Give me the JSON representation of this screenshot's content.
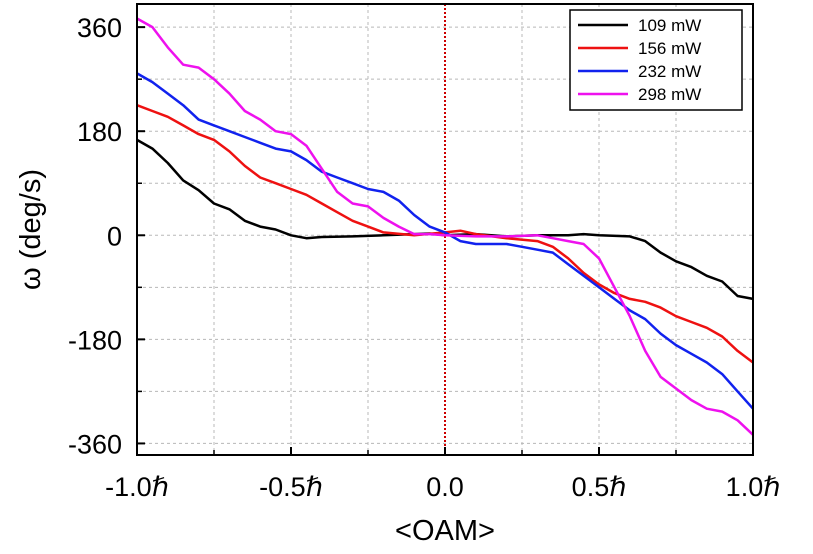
{
  "chart_data": {
    "type": "line",
    "xlabel": "<OAM>",
    "ylabel": "ω (deg/s)",
    "xlim": [
      -1.0,
      1.0
    ],
    "ylim": [
      -380,
      400
    ],
    "x_ticks": [
      {
        "value": -1.0,
        "label": "-1.0ℏ"
      },
      {
        "value": -0.5,
        "label": "-0.5ℏ"
      },
      {
        "value": 0.0,
        "label": "0.0"
      },
      {
        "value": 0.5,
        "label": "0.5ℏ"
      },
      {
        "value": 1.0,
        "label": "1.0ℏ"
      }
    ],
    "y_ticks": [
      {
        "value": 360,
        "label": "360"
      },
      {
        "value": 180,
        "label": "180"
      },
      {
        "value": 0,
        "label": "0"
      },
      {
        "value": -180,
        "label": "-180"
      },
      {
        "value": -360,
        "label": "-360"
      }
    ],
    "grid": true,
    "reference_line": {
      "x": 0.0,
      "color": "#cc0000"
    },
    "legend_position": "top-right",
    "series": [
      {
        "name": "109 mW",
        "color": "#000000",
        "points": [
          [
            -1.0,
            165
          ],
          [
            -0.95,
            150
          ],
          [
            -0.9,
            125
          ],
          [
            -0.85,
            95
          ],
          [
            -0.8,
            78
          ],
          [
            -0.75,
            55
          ],
          [
            -0.7,
            45
          ],
          [
            -0.65,
            25
          ],
          [
            -0.6,
            15
          ],
          [
            -0.55,
            10
          ],
          [
            -0.5,
            0
          ],
          [
            -0.45,
            -5
          ],
          [
            -0.4,
            -3
          ],
          [
            -0.3,
            -2
          ],
          [
            -0.2,
            0
          ],
          [
            -0.1,
            2
          ],
          [
            -0.05,
            3
          ],
          [
            0.0,
            0
          ],
          [
            0.1,
            2
          ],
          [
            0.2,
            -2
          ],
          [
            0.3,
            0
          ],
          [
            0.4,
            0
          ],
          [
            0.45,
            2
          ],
          [
            0.5,
            0
          ],
          [
            0.6,
            -2
          ],
          [
            0.65,
            -10
          ],
          [
            0.7,
            -30
          ],
          [
            0.75,
            -45
          ],
          [
            0.8,
            -55
          ],
          [
            0.85,
            -70
          ],
          [
            0.9,
            -80
          ],
          [
            0.95,
            -105
          ],
          [
            1.0,
            -110
          ]
        ]
      },
      {
        "name": "156 mW",
        "color": "#ee1111",
        "points": [
          [
            -1.0,
            225
          ],
          [
            -0.95,
            215
          ],
          [
            -0.9,
            205
          ],
          [
            -0.85,
            190
          ],
          [
            -0.8,
            175
          ],
          [
            -0.75,
            165
          ],
          [
            -0.7,
            145
          ],
          [
            -0.65,
            120
          ],
          [
            -0.6,
            100
          ],
          [
            -0.55,
            90
          ],
          [
            -0.5,
            80
          ],
          [
            -0.45,
            70
          ],
          [
            -0.4,
            55
          ],
          [
            -0.35,
            40
          ],
          [
            -0.3,
            25
          ],
          [
            -0.25,
            15
          ],
          [
            -0.2,
            5
          ],
          [
            -0.1,
            0
          ],
          [
            0.0,
            5
          ],
          [
            0.05,
            8
          ],
          [
            0.1,
            2
          ],
          [
            0.2,
            -5
          ],
          [
            0.3,
            -10
          ],
          [
            0.35,
            -20
          ],
          [
            0.4,
            -40
          ],
          [
            0.45,
            -65
          ],
          [
            0.5,
            -85
          ],
          [
            0.55,
            -100
          ],
          [
            0.6,
            -110
          ],
          [
            0.65,
            -115
          ],
          [
            0.7,
            -125
          ],
          [
            0.75,
            -140
          ],
          [
            0.8,
            -150
          ],
          [
            0.85,
            -160
          ],
          [
            0.9,
            -175
          ],
          [
            0.95,
            -200
          ],
          [
            1.0,
            -220
          ]
        ]
      },
      {
        "name": "232 mW",
        "color": "#1122ee",
        "points": [
          [
            -1.0,
            280
          ],
          [
            -0.95,
            265
          ],
          [
            -0.9,
            245
          ],
          [
            -0.85,
            225
          ],
          [
            -0.8,
            200
          ],
          [
            -0.75,
            190
          ],
          [
            -0.7,
            180
          ],
          [
            -0.65,
            170
          ],
          [
            -0.6,
            160
          ],
          [
            -0.55,
            150
          ],
          [
            -0.5,
            145
          ],
          [
            -0.45,
            130
          ],
          [
            -0.4,
            110
          ],
          [
            -0.35,
            100
          ],
          [
            -0.3,
            90
          ],
          [
            -0.25,
            80
          ],
          [
            -0.2,
            75
          ],
          [
            -0.15,
            60
          ],
          [
            -0.1,
            35
          ],
          [
            -0.05,
            15
          ],
          [
            0.0,
            5
          ],
          [
            0.05,
            -10
          ],
          [
            0.1,
            -15
          ],
          [
            0.2,
            -15
          ],
          [
            0.25,
            -20
          ],
          [
            0.3,
            -25
          ],
          [
            0.35,
            -30
          ],
          [
            0.4,
            -50
          ],
          [
            0.45,
            -70
          ],
          [
            0.5,
            -90
          ],
          [
            0.55,
            -110
          ],
          [
            0.6,
            -130
          ],
          [
            0.65,
            -145
          ],
          [
            0.7,
            -170
          ],
          [
            0.75,
            -190
          ],
          [
            0.8,
            -205
          ],
          [
            0.85,
            -220
          ],
          [
            0.9,
            -240
          ],
          [
            0.95,
            -270
          ],
          [
            1.0,
            -300
          ]
        ]
      },
      {
        "name": "298 mW",
        "color": "#ee11ee",
        "points": [
          [
            -1.0,
            375
          ],
          [
            -0.95,
            360
          ],
          [
            -0.9,
            325
          ],
          [
            -0.85,
            295
          ],
          [
            -0.8,
            290
          ],
          [
            -0.75,
            270
          ],
          [
            -0.7,
            245
          ],
          [
            -0.65,
            215
          ],
          [
            -0.6,
            200
          ],
          [
            -0.55,
            180
          ],
          [
            -0.5,
            175
          ],
          [
            -0.45,
            155
          ],
          [
            -0.4,
            115
          ],
          [
            -0.35,
            75
          ],
          [
            -0.3,
            55
          ],
          [
            -0.25,
            50
          ],
          [
            -0.2,
            30
          ],
          [
            -0.15,
            15
          ],
          [
            -0.1,
            2
          ],
          [
            -0.05,
            2
          ],
          [
            0.0,
            0
          ],
          [
            0.1,
            -2
          ],
          [
            0.2,
            -2
          ],
          [
            0.3,
            0
          ],
          [
            0.35,
            -5
          ],
          [
            0.4,
            -10
          ],
          [
            0.45,
            -15
          ],
          [
            0.5,
            -40
          ],
          [
            0.55,
            -90
          ],
          [
            0.6,
            -140
          ],
          [
            0.65,
            -200
          ],
          [
            0.7,
            -245
          ],
          [
            0.75,
            -265
          ],
          [
            0.8,
            -285
          ],
          [
            0.85,
            -300
          ],
          [
            0.9,
            -305
          ],
          [
            0.95,
            -320
          ],
          [
            1.0,
            -345
          ]
        ]
      }
    ]
  }
}
